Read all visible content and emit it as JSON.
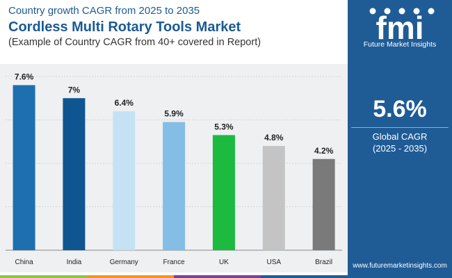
{
  "header": {
    "subtitle": "Country growth CAGR from 2025 to 2035",
    "title": "Cordless Multi Rotary Tools Market",
    "note": "(Example of Country CAGR from 40+ covered in Report)"
  },
  "brand": {
    "logo_text": "fmi",
    "logo_caption": "Future Market Insights",
    "website": "www.futuremarketinsights.com"
  },
  "summary": {
    "value": "5.6%",
    "label": "Global CAGR",
    "period": "(2025 - 2035)"
  },
  "colors": {
    "panel": "#1f5c96",
    "title": "#1a5a94",
    "footer": [
      "#8dc63f",
      "#f7941d",
      "#7f3f98",
      "#1f5c96"
    ]
  },
  "chart_data": {
    "type": "bar",
    "categories": [
      "China",
      "India",
      "Germany",
      "France",
      "UK",
      "USA",
      "Brazil"
    ],
    "values": [
      7.6,
      7.0,
      6.4,
      5.9,
      5.3,
      4.8,
      4.2
    ],
    "data_labels": [
      "7.6%",
      "7%",
      "6.4%",
      "5.9%",
      "5.3%",
      "4.8%",
      "4.2%"
    ],
    "colors": [
      "#1d6fb0",
      "#0f5591",
      "#c5e2f4",
      "#84bde5",
      "#1cba3f",
      "#c4c4c4",
      "#7a7a7a"
    ],
    "ylim": [
      0,
      8
    ],
    "grid": true,
    "title": "",
    "xlabel": "",
    "ylabel": ""
  }
}
